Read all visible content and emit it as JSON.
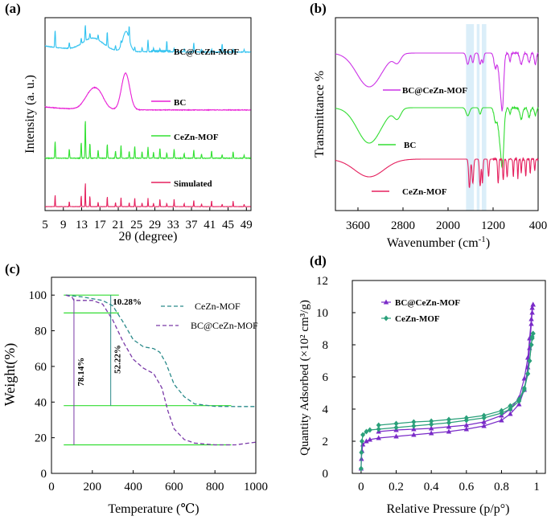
{
  "chart_data": [
    {
      "panel": "(a)",
      "type": "line",
      "title": "",
      "xlabel": "2θ (degree)",
      "ylabel": "Intensity (a. u.)",
      "xlim": [
        5,
        50
      ],
      "xticks": [
        "5",
        "9",
        "13",
        "17",
        "21",
        "25",
        "29",
        "33",
        "37",
        "41",
        "45",
        "49"
      ],
      "series": [
        {
          "name": "BC@CeZn-MOF",
          "color": "#33c3f0",
          "offset": 0.82,
          "scale": 0.16
        },
        {
          "name": "BC",
          "color": "#e81fd5",
          "offset": 0.52,
          "scale": 0.2
        },
        {
          "name": "CeZn-MOF",
          "color": "#32e132",
          "offset": 0.27,
          "scale": 0.22
        },
        {
          "name": "Simulated",
          "color": "#e5205e",
          "offset": 0.02,
          "scale": 0.14
        }
      ],
      "peaks_2theta": [
        7.2,
        10.3,
        12.9,
        13.8,
        14.8,
        16.6,
        18.6,
        20.4,
        21.6,
        23.4,
        24.6,
        26.2,
        27.5,
        28.7,
        30.1,
        31.6,
        33.2,
        35.4,
        37.5,
        39.2,
        41.4,
        43.7,
        46.1,
        48.5
      ]
    },
    {
      "panel": "(b)",
      "type": "line",
      "xlabel": "Wavenumber (cm⁻¹)",
      "ylabel": "Transmittance %",
      "xlim": [
        4000,
        400
      ],
      "xticks": [
        "3600",
        "2800",
        "2000",
        "1200",
        "400"
      ],
      "series": [
        {
          "name": "BC@CeZn-MOF",
          "color": "#cc33e6"
        },
        {
          "name": "BC",
          "color": "#33dd33"
        },
        {
          "name": "CeZn-MOF",
          "color": "#e5205e"
        }
      ],
      "highlight_bands_cm1": [
        [
          1680,
          1540
        ],
        [
          1490,
          1440
        ],
        [
          1400,
          1320
        ]
      ]
    },
    {
      "panel": "(c)",
      "type": "line",
      "xlabel": "Temperature (°C)",
      "ylabel": "Weight(%)",
      "xlim": [
        0,
        1000
      ],
      "ylim": [
        0,
        110
      ],
      "xticks": [
        "0",
        "200",
        "400",
        "600",
        "800",
        "1000"
      ],
      "yticks": [
        "0",
        "20",
        "40",
        "60",
        "80",
        "100"
      ],
      "series": [
        {
          "name": "CeZn-MOF",
          "color": "#2a8a8a",
          "x": [
            70,
            150,
            250,
            300,
            350,
            400,
            450,
            500,
            530,
            560,
            600,
            650,
            700,
            800,
            900,
            1000
          ],
          "y": [
            100,
            99,
            97,
            94,
            85,
            75,
            71,
            70,
            68,
            62,
            50,
            43,
            39,
            37.6,
            37.5,
            37.5
          ]
        },
        {
          "name": "BC@CeZn-MOF",
          "color": "#7a3aa8",
          "x": [
            70,
            100,
            110,
            150,
            200,
            250,
            300,
            350,
            400,
            450,
            500,
            540,
            570,
            600,
            650,
            700,
            800,
            900,
            1000
          ],
          "y": [
            100,
            99,
            97,
            97,
            97,
            95,
            86,
            74,
            64,
            59,
            56,
            48,
            35,
            25,
            19,
            17,
            16,
            16,
            17.5
          ]
        }
      ],
      "annotations": [
        {
          "text": "10.28%",
          "color": "#2a8a8a"
        },
        {
          "text": "52.22%",
          "color": "#2a8a8a"
        },
        {
          "text": "78.14%",
          "color": "#7a3aa8"
        }
      ],
      "reference_lines_weight": [
        100,
        90,
        38,
        16
      ]
    },
    {
      "panel": "(d)",
      "type": "scatter",
      "xlabel": "Relative Pressure (p/p°)",
      "ylabel": "Quantity Adsorbed (×10² cm³/g)",
      "xlim": [
        -0.05,
        1.05
      ],
      "ylim": [
        0,
        12
      ],
      "xticks": [
        "0",
        "0.2",
        "0.4",
        "0.6",
        "0.8",
        "1"
      ],
      "yticks": [
        "0",
        "2",
        "4",
        "6",
        "8",
        "10",
        "12"
      ],
      "series": [
        {
          "name": "BC@CeZn-MOF",
          "color": "#7a2bc8",
          "marker": "triangle",
          "adsorption": {
            "x": [
              0.0,
              0.002,
              0.005,
              0.01,
              0.03,
              0.05,
              0.1,
              0.2,
              0.3,
              0.4,
              0.5,
              0.6,
              0.7,
              0.8,
              0.85,
              0.9,
              0.93,
              0.95,
              0.96,
              0.97,
              0.975,
              0.98
            ],
            "y": [
              0.3,
              0.9,
              1.4,
              1.8,
              2.0,
              2.1,
              2.2,
              2.3,
              2.4,
              2.5,
              2.6,
              2.75,
              2.95,
              3.3,
              3.7,
              4.3,
              5.2,
              6.6,
              7.8,
              9.3,
              10.0,
              10.5
            ]
          },
          "desorption": {
            "x": [
              0.98,
              0.975,
              0.97,
              0.96,
              0.95,
              0.93,
              0.9,
              0.85,
              0.8,
              0.7,
              0.6,
              0.5,
              0.4,
              0.3,
              0.2,
              0.1
            ],
            "y": [
              10.5,
              10.3,
              9.6,
              8.4,
              7.2,
              5.9,
              4.7,
              4.0,
              3.6,
              3.2,
              3.0,
              2.9,
              2.8,
              2.75,
              2.7,
              2.6
            ]
          }
        },
        {
          "name": "CeZn-MOF",
          "color": "#2aa07a",
          "marker": "diamond",
          "adsorption": {
            "x": [
              0.0,
              0.002,
              0.005,
              0.01,
              0.03,
              0.05,
              0.1,
              0.2,
              0.3,
              0.4,
              0.5,
              0.6,
              0.7,
              0.8,
              0.85,
              0.9,
              0.93,
              0.95,
              0.96,
              0.97,
              0.975,
              0.98
            ],
            "y": [
              0.3,
              1.3,
              2.0,
              2.4,
              2.6,
              2.7,
              2.75,
              2.85,
              2.95,
              3.05,
              3.15,
              3.3,
              3.45,
              3.75,
              4.0,
              4.5,
              5.2,
              6.2,
              7.0,
              8.0,
              8.4,
              8.7
            ]
          },
          "desorption": {
            "x": [
              0.98,
              0.975,
              0.97,
              0.96,
              0.95,
              0.93,
              0.9,
              0.85,
              0.8,
              0.7,
              0.6,
              0.5,
              0.4,
              0.3,
              0.2,
              0.1
            ],
            "y": [
              8.7,
              8.5,
              8.0,
              7.0,
              6.2,
              5.3,
              4.6,
              4.2,
              3.9,
              3.6,
              3.45,
              3.35,
              3.25,
              3.2,
              3.1,
              3.0
            ]
          }
        }
      ]
    }
  ],
  "panels": {
    "a": {
      "label": "(a)",
      "xlabel": "2θ (degree)",
      "ylabel": "Intensity (a. u.)"
    },
    "b": {
      "label": "(b)",
      "xlabel": "Wavenumber (cm",
      "xlabel_sup": "-1",
      "xlabel_end": ")",
      "ylabel": "Transmittance %"
    },
    "c": {
      "label": "(c)",
      "xlabel": "Temperature (℃)",
      "ylabel": "Weight(%)"
    },
    "d": {
      "label": "(d)",
      "xlabel": "Relative Pressure (p/p°)",
      "ylabel": "Quantity Adsorbed (×10² cm³/g)"
    }
  }
}
